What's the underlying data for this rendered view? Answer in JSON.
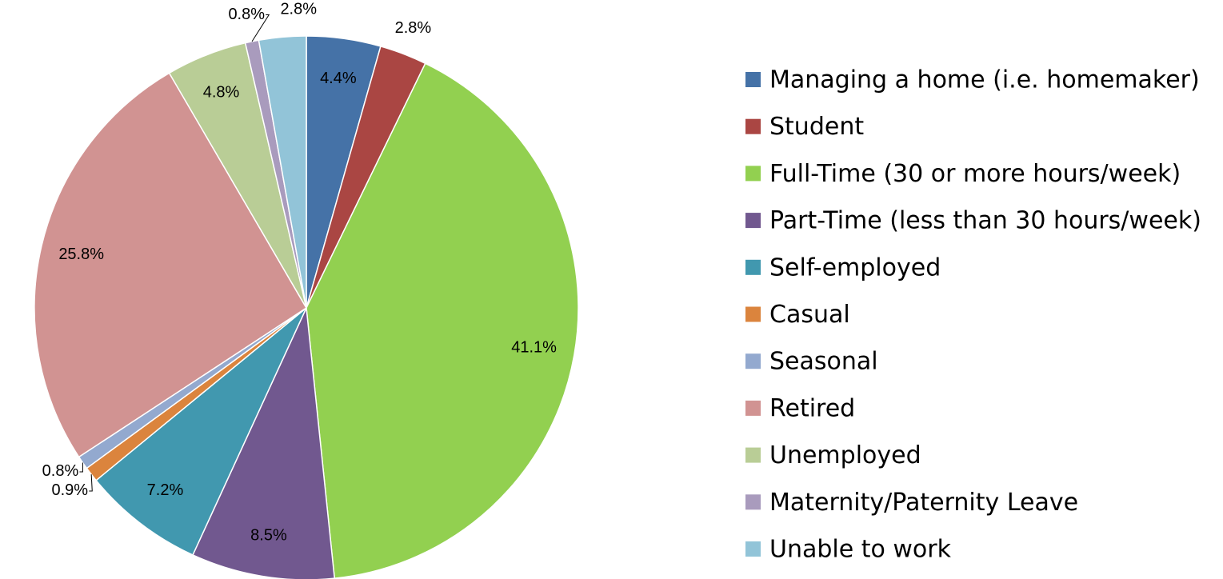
{
  "chart_data": {
    "type": "pie",
    "categories": [
      "Managing a home (i.e. homemaker)",
      "Student",
      "Full-Time (30 or more hours/week)",
      "Part-Time (less than 30 hours/week)",
      "Self-employed",
      "Casual",
      "Seasonal",
      "Retired",
      "Unemployed",
      "Maternity/Paternity Leave",
      "Unable to work"
    ],
    "values": [
      4.4,
      2.8,
      41.1,
      8.5,
      7.2,
      0.9,
      0.8,
      25.8,
      4.8,
      0.8,
      2.8
    ],
    "value_labels": [
      "4.4%",
      "2.8%",
      "41.1%",
      "8.5%",
      "7.2%",
      "0.9%",
      "0.8%",
      "25.8%",
      "4.8%",
      "0.8%",
      "2.8%"
    ],
    "colors": [
      "#4572a7",
      "#aa4643",
      "#92d050",
      "#71588f",
      "#4198af",
      "#db843d",
      "#93a9cf",
      "#d19392",
      "#b9cd96",
      "#a99bbd",
      "#92c4d8"
    ],
    "legend": "right"
  }
}
